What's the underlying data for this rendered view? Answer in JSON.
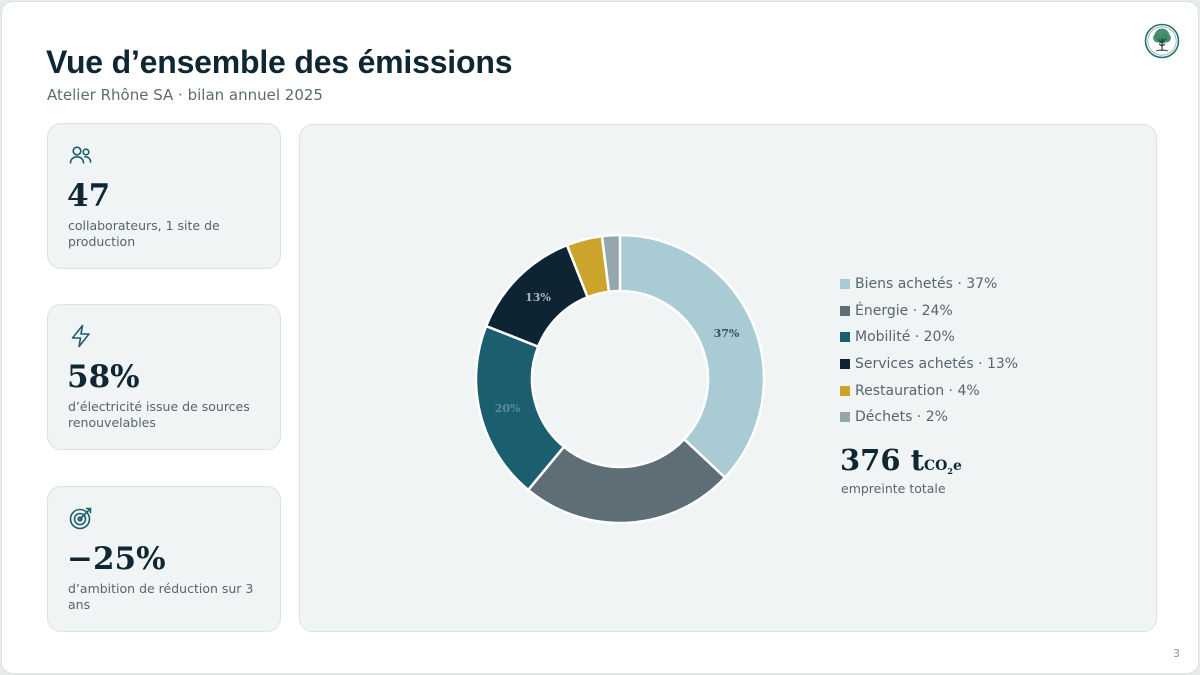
{
  "header": {
    "title": "Vue d’ensemble des émissions",
    "subtitle": "Atelier Rhône SA · bilan annuel 2025",
    "page_number": "3"
  },
  "kpis": [
    {
      "icon": "people-icon",
      "value": "47",
      "description": "collaborateurs, 1 site de production"
    },
    {
      "icon": "lightning-icon",
      "value": "58%",
      "description": "d’électricité issue de sources renouvelables"
    },
    {
      "icon": "target-icon",
      "value": "−25%",
      "description": "d’ambition de réduction sur 3 ans"
    }
  ],
  "chart_data": {
    "type": "pie",
    "categories": [
      "Biens achetés",
      "Énergie",
      "Mobilité",
      "Services achetés",
      "Restauration",
      "Déchets"
    ],
    "values": [
      37,
      24,
      20,
      13,
      4,
      2
    ],
    "legend_labels": [
      "Biens achetés · 37%",
      "Énergie · 24%",
      "Mobilité · 20%",
      "Services achetés · 13%",
      "Restauration · 4%",
      "Déchets · 2%"
    ],
    "data_labels": [
      "37%",
      "",
      "20%",
      "13%",
      "",
      ""
    ],
    "colors": [
      "#a9cbd4",
      "#5e6e77",
      "#1b5e70",
      "#0e2432",
      "#cca42b",
      "#96a6ad"
    ],
    "legend_position": "right",
    "total": {
      "value": "376 t",
      "unit_main": "CO",
      "unit_sub": "2",
      "unit_tail": "e",
      "label": "empreinte totale"
    }
  },
  "colors": {
    "ink": "#0f2633",
    "muted": "#5c6c75",
    "accent": "#1b5e70"
  }
}
